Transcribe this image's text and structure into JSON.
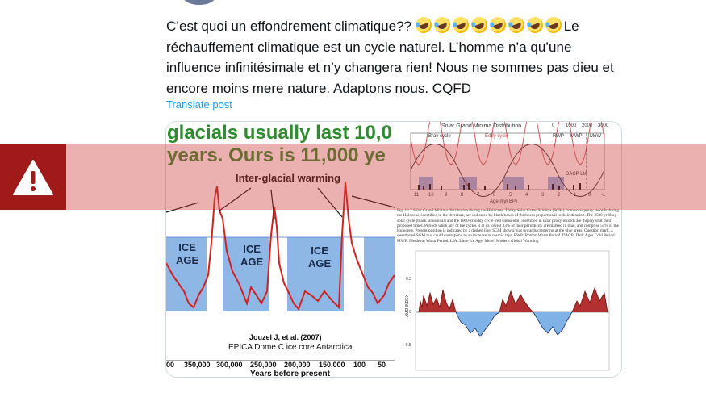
{
  "post": {
    "text_line_1": "C’est quoi un effondrement climatique??",
    "emoji_name": "rolling-on-floor-laughing-emoji",
    "emoji_count": 8,
    "text_line_1_end": "Le",
    "text_rest": "réchauffement climatique est un cycle naturel. L’homme n’a qu’une influence infinitésimale et n’y changera rien! Nous ne sommes pas dieu et encore moins mere nature. Adaptons nous. CQFD",
    "translate_label": "Translate post",
    "accent_color": "#1d9bf0"
  },
  "media_left": {
    "headline_1": "glacials usually last 10,0",
    "headline_2": "years. Ours is 11,000 ye",
    "annotation": "Inter-glacial warming",
    "ice_label_1": "ICE\nAGE",
    "ice_labels": [
      "ICE",
      "AGE"
    ],
    "source_1": "Jouzel J, et al. (2007)",
    "source_2": "EPICA Dome C ice core Antarctica",
    "x_ticks": [
      "00",
      "350,000",
      "300,000",
      "250,000",
      "200,000",
      "150,000",
      "100",
      "50"
    ],
    "x_label": "Years before present",
    "curve_color": "#d42020",
    "ice_color": "#8fb7e6"
  },
  "media_right": {
    "title": "Solar Grand Minima Distribution",
    "top_ticks": [
      "0",
      "1000",
      "2000",
      "3000"
    ],
    "legend": [
      "Bray cycle",
      "Eddy cycle"
    ],
    "era_labels": [
      "RWP",
      "MWP",
      "MoW"
    ],
    "event_label": "DACP LIA",
    "x_ticks": [
      "11",
      "10",
      "9",
      "8",
      "7",
      "6",
      "5",
      "4",
      "3",
      "2",
      "1",
      "0",
      "-1"
    ],
    "x_label": "Age (kyr BP)",
    "caption": "Fig. 13.7 Solar Grand Minima distribution during the Holocene. Thirty Solar Grand Minima (SGM) from solar proxy records during the Holocene, identified in the literature, are indicated by black boxes of thickness proportional to their duration. The 2500-yr Bray solar cycle (black sinusoidal) and the 1000-yr Eddy cycle (red sinusoidal) identified in solar proxy records are displayed at their proposed times. Periods when any of the cycles is at its lowest 33% of their periodicity are marked in blue, and comprise 54% of the Holocene. Present position is indicated by a dashed line. SGM show a bias towards clustering at the blue areas. Question mark, a questioned SGM that could correspond to an increase in cosmic rays. RWP: Roman Warm Period. DACP: Dark Ages Cold Period. MWP: Medieval Warm Period. LIA: Little Ice Age. MoW: Modern Global Warming.",
    "y_ticks": [
      "0.5",
      "0",
      "-0.5"
    ],
    "y_label": "AMO INDEX"
  },
  "warning": {
    "icon": "warning-triangle-icon",
    "banner_color": "#cd3c3c",
    "icon_bg": "#a11a1a"
  }
}
